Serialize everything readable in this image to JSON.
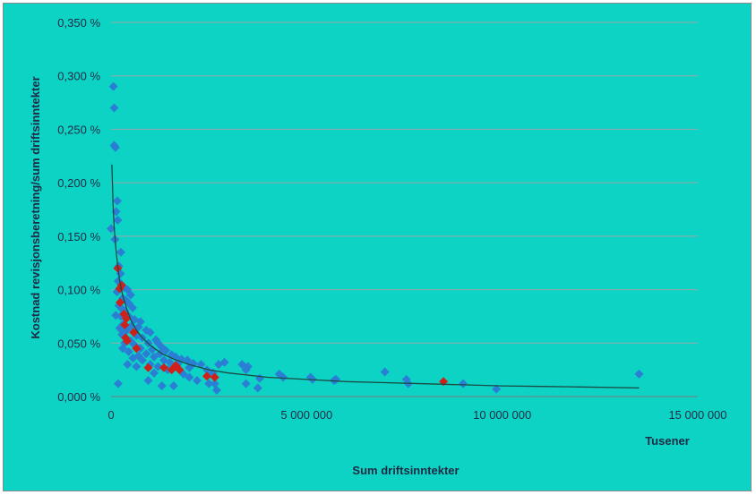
{
  "chart_data": {
    "type": "scatter",
    "title": "",
    "xlabel": "Sum driftsinntekter",
    "ylabel": "Kostnad revisjonsberetning/sum driftsinntekter",
    "x_unit_label": "Tusener",
    "xlim": [
      0,
      15000000
    ],
    "ylim": [
      0,
      0.0035
    ],
    "x_ticks": [
      {
        "value": 0,
        "label": "0"
      },
      {
        "value": 5000000,
        "label": "5 000 000"
      },
      {
        "value": 10000000,
        "label": "10 000 000"
      },
      {
        "value": 15000000,
        "label": "15 000 000"
      }
    ],
    "y_ticks": [
      {
        "value": 0,
        "label": "0,000 %"
      },
      {
        "value": 0.0005,
        "label": "0,050 %"
      },
      {
        "value": 0.001,
        "label": "0,100 %"
      },
      {
        "value": 0.0015,
        "label": "0,150 %"
      },
      {
        "value": 0.002,
        "label": "0,200 %"
      },
      {
        "value": 0.0025,
        "label": "0,250 %"
      },
      {
        "value": 0.003,
        "label": "0,300 %"
      },
      {
        "value": 0.0035,
        "label": "0,350 %"
      }
    ],
    "grid": "horizontal",
    "legend": "none",
    "series": [
      {
        "color": "#2a7fd4",
        "points": [
          [
            60000,
            0.0029
          ],
          [
            80000,
            0.0027
          ],
          [
            80000,
            0.00235
          ],
          [
            110000,
            0.00233
          ],
          [
            160000,
            0.00183
          ],
          [
            130000,
            0.00173
          ],
          [
            170000,
            0.00165
          ],
          [
            0,
            0.00157
          ],
          [
            100000,
            0.00147
          ],
          [
            250000,
            0.00135
          ],
          [
            200000,
            0.00122
          ],
          [
            240000,
            0.00115
          ],
          [
            180000,
            0.00108
          ],
          [
            260000,
            0.00105
          ],
          [
            330000,
            0.00102
          ],
          [
            420000,
            0.001
          ],
          [
            500000,
            0.00095
          ],
          [
            150000,
            0.00098
          ],
          [
            300000,
            0.00092
          ],
          [
            380000,
            0.0009
          ],
          [
            460000,
            0.00087
          ],
          [
            200000,
            0.00085
          ],
          [
            280000,
            0.00082
          ],
          [
            350000,
            0.0008
          ],
          [
            550000,
            0.00083
          ],
          [
            120000,
            0.00076
          ],
          [
            250000,
            0.00075
          ],
          [
            450000,
            0.00075
          ],
          [
            600000,
            0.00072
          ],
          [
            750000,
            0.0007
          ],
          [
            320000,
            0.00068
          ],
          [
            520000,
            0.00066
          ],
          [
            700000,
            0.00065
          ],
          [
            220000,
            0.00064
          ],
          [
            400000,
            0.00062
          ],
          [
            900000,
            0.00062
          ],
          [
            1000000,
            0.0006
          ],
          [
            280000,
            0.00058
          ],
          [
            650000,
            0.00057
          ],
          [
            800000,
            0.00055
          ],
          [
            1150000,
            0.00053
          ],
          [
            500000,
            0.00052
          ],
          [
            350000,
            0.0005
          ],
          [
            950000,
            0.0005
          ],
          [
            1200000,
            0.0005
          ],
          [
            600000,
            0.00048
          ],
          [
            1300000,
            0.00046
          ],
          [
            750000,
            0.00045
          ],
          [
            1050000,
            0.00044
          ],
          [
            1400000,
            0.00043
          ],
          [
            450000,
            0.00042
          ],
          [
            900000,
            0.0004
          ],
          [
            1250000,
            0.0004
          ],
          [
            1550000,
            0.00039
          ],
          [
            700000,
            0.00038
          ],
          [
            1100000,
            0.00037
          ],
          [
            1650000,
            0.00037
          ],
          [
            1800000,
            0.00035
          ],
          [
            800000,
            0.00034
          ],
          [
            1350000,
            0.00034
          ],
          [
            1950000,
            0.00034
          ],
          [
            1500000,
            0.00032
          ],
          [
            2100000,
            0.00031
          ],
          [
            2300000,
            0.0003
          ],
          [
            1000000,
            0.0003
          ],
          [
            1700000,
            0.0003
          ],
          [
            2750000,
            0.0003
          ],
          [
            2900000,
            0.00032
          ],
          [
            3350000,
            0.0003
          ],
          [
            3500000,
            0.00028
          ],
          [
            1200000,
            0.00028
          ],
          [
            2000000,
            0.00027
          ],
          [
            3450000,
            0.00025
          ],
          [
            1450000,
            0.00025
          ],
          [
            2450000,
            0.00025
          ],
          [
            4300000,
            0.00021
          ],
          [
            1850000,
            0.00021
          ],
          [
            2600000,
            0.00022
          ],
          [
            4400000,
            0.00018
          ],
          [
            3800000,
            0.00017
          ],
          [
            5100000,
            0.00018
          ],
          [
            5150000,
            0.00016
          ],
          [
            5750000,
            0.00016
          ],
          [
            5700000,
            0.00015
          ],
          [
            2200000,
            0.00015
          ],
          [
            3450000,
            0.00012
          ],
          [
            2650000,
            0.00012
          ],
          [
            7000000,
            0.00023
          ],
          [
            7550000,
            0.00016
          ],
          [
            7600000,
            0.00012
          ],
          [
            9000000,
            0.00012
          ],
          [
            2500000,
            0.00012
          ],
          [
            1300000,
            0.0001
          ],
          [
            1600000,
            0.0001
          ],
          [
            3750000,
            8e-05
          ],
          [
            2700000,
            6e-05
          ],
          [
            180000,
            0.00012
          ],
          [
            650000,
            0.00028
          ],
          [
            420000,
            0.0003
          ],
          [
            950000,
            0.00015
          ],
          [
            9850000,
            7e-05
          ],
          [
            13500000,
            0.00021
          ],
          [
            2000000,
            0.00018
          ],
          [
            1100000,
            0.00022
          ],
          [
            300000,
            0.00045
          ],
          [
            560000,
            0.00036
          ]
        ]
      },
      {
        "color": "#d0201a",
        "points": [
          [
            170000,
            0.0012
          ],
          [
            270000,
            0.00104
          ],
          [
            220000,
            0.00101
          ],
          [
            230000,
            0.00088
          ],
          [
            330000,
            0.00077
          ],
          [
            390000,
            0.00073
          ],
          [
            350000,
            0.00067
          ],
          [
            580000,
            0.0006
          ],
          [
            370000,
            0.00055
          ],
          [
            410000,
            0.00052
          ],
          [
            650000,
            0.00045
          ],
          [
            950000,
            0.00027
          ],
          [
            1350000,
            0.00027
          ],
          [
            1550000,
            0.00025
          ],
          [
            1750000,
            0.00025
          ],
          [
            1650000,
            0.00029
          ],
          [
            2450000,
            0.00019
          ],
          [
            2650000,
            0.00018
          ],
          [
            8500000,
            0.00014
          ]
        ]
      }
    ],
    "trendline": {
      "color": "#1a4a42",
      "points": [
        [
          20000,
          0.00217
        ],
        [
          50000,
          0.0018
        ],
        [
          80000,
          0.00158
        ],
        [
          120000,
          0.0014
        ],
        [
          170000,
          0.00122
        ],
        [
          230000,
          0.00106
        ],
        [
          300000,
          0.00094
        ],
        [
          400000,
          0.00082
        ],
        [
          500000,
          0.00072
        ],
        [
          650000,
          0.00062
        ],
        [
          800000,
          0.00055
        ],
        [
          1000000,
          0.00048
        ],
        [
          1300000,
          0.0004
        ],
        [
          1600000,
          0.00035
        ],
        [
          2000000,
          0.0003
        ],
        [
          2500000,
          0.00025
        ],
        [
          3000000,
          0.00022
        ],
        [
          4000000,
          0.00018
        ],
        [
          5000000,
          0.00016
        ],
        [
          6000000,
          0.00014
        ],
        [
          7000000,
          0.00013
        ],
        [
          8000000,
          0.00012
        ],
        [
          9000000,
          0.00011
        ],
        [
          10000000,
          0.0001
        ],
        [
          11000000,
          9.5e-05
        ],
        [
          12000000,
          9e-05
        ],
        [
          13500000,
          8e-05
        ]
      ]
    }
  }
}
